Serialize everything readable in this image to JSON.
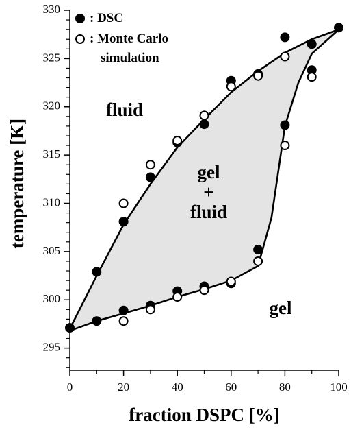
{
  "chart_data": {
    "type": "scatter",
    "xlabel": "fraction DSPC [%]",
    "ylabel": "temperature [K]",
    "xlim": [
      0,
      100
    ],
    "ylim": [
      292.7,
      330
    ],
    "xticks": [
      0,
      20,
      40,
      60,
      80,
      100
    ],
    "xminor": [
      10,
      30,
      50,
      70,
      90
    ],
    "yticks": [
      295,
      300,
      305,
      310,
      315,
      320,
      325,
      330
    ],
    "yminor": [
      293,
      294,
      296,
      297,
      298,
      299,
      301,
      302,
      303,
      304,
      306,
      307,
      308,
      309,
      311,
      312,
      313,
      314,
      316,
      317,
      318,
      319,
      321,
      322,
      323,
      324,
      326,
      327,
      328,
      329
    ],
    "series": [
      {
        "name": ": DSC",
        "marker": "filled",
        "color": "#000000",
        "x": [
          0,
          10,
          10,
          20,
          20,
          30,
          30,
          40,
          40,
          50,
          50,
          60,
          60,
          70,
          70,
          80,
          80,
          90,
          90,
          100
        ],
        "values": [
          297.1,
          302.9,
          297.8,
          308.1,
          298.9,
          312.7,
          299.4,
          316.3,
          300.9,
          318.2,
          301.4,
          322.7,
          301.7,
          323.4,
          305.2,
          327.2,
          318.1,
          326.5,
          323.8,
          328.2
        ]
      },
      {
        "name": ": Monte Carlo simulation",
        "marker": "open",
        "color": "#000000",
        "x": [
          20,
          20,
          30,
          30,
          40,
          40,
          50,
          50,
          60,
          60,
          70,
          70,
          80,
          80,
          90
        ],
        "values": [
          310,
          297.8,
          314,
          299,
          316.5,
          300.3,
          319.1,
          301,
          322.1,
          301.9,
          323.2,
          304,
          325.2,
          316,
          323.1
        ]
      }
    ],
    "curves": [
      {
        "x": [
          0,
          10,
          20,
          30,
          40,
          50,
          60,
          70,
          80,
          90,
          100
        ],
        "values": [
          297,
          302.5,
          307.8,
          312,
          315.8,
          318.7,
          321.5,
          323.7,
          325.6,
          327,
          328
        ]
      },
      {
        "x": [
          0,
          10,
          20,
          30,
          40,
          50,
          60,
          70,
          75,
          80,
          85,
          90,
          100
        ],
        "values": [
          296.8,
          297.8,
          298.6,
          299.4,
          300.3,
          301.1,
          302,
          303.5,
          308.5,
          318,
          322.5,
          325.5,
          328
        ]
      }
    ],
    "fill_color": "#e4e4e4",
    "annotations": [
      "fluid",
      "gel",
      "+",
      "fluid",
      "gel"
    ]
  }
}
